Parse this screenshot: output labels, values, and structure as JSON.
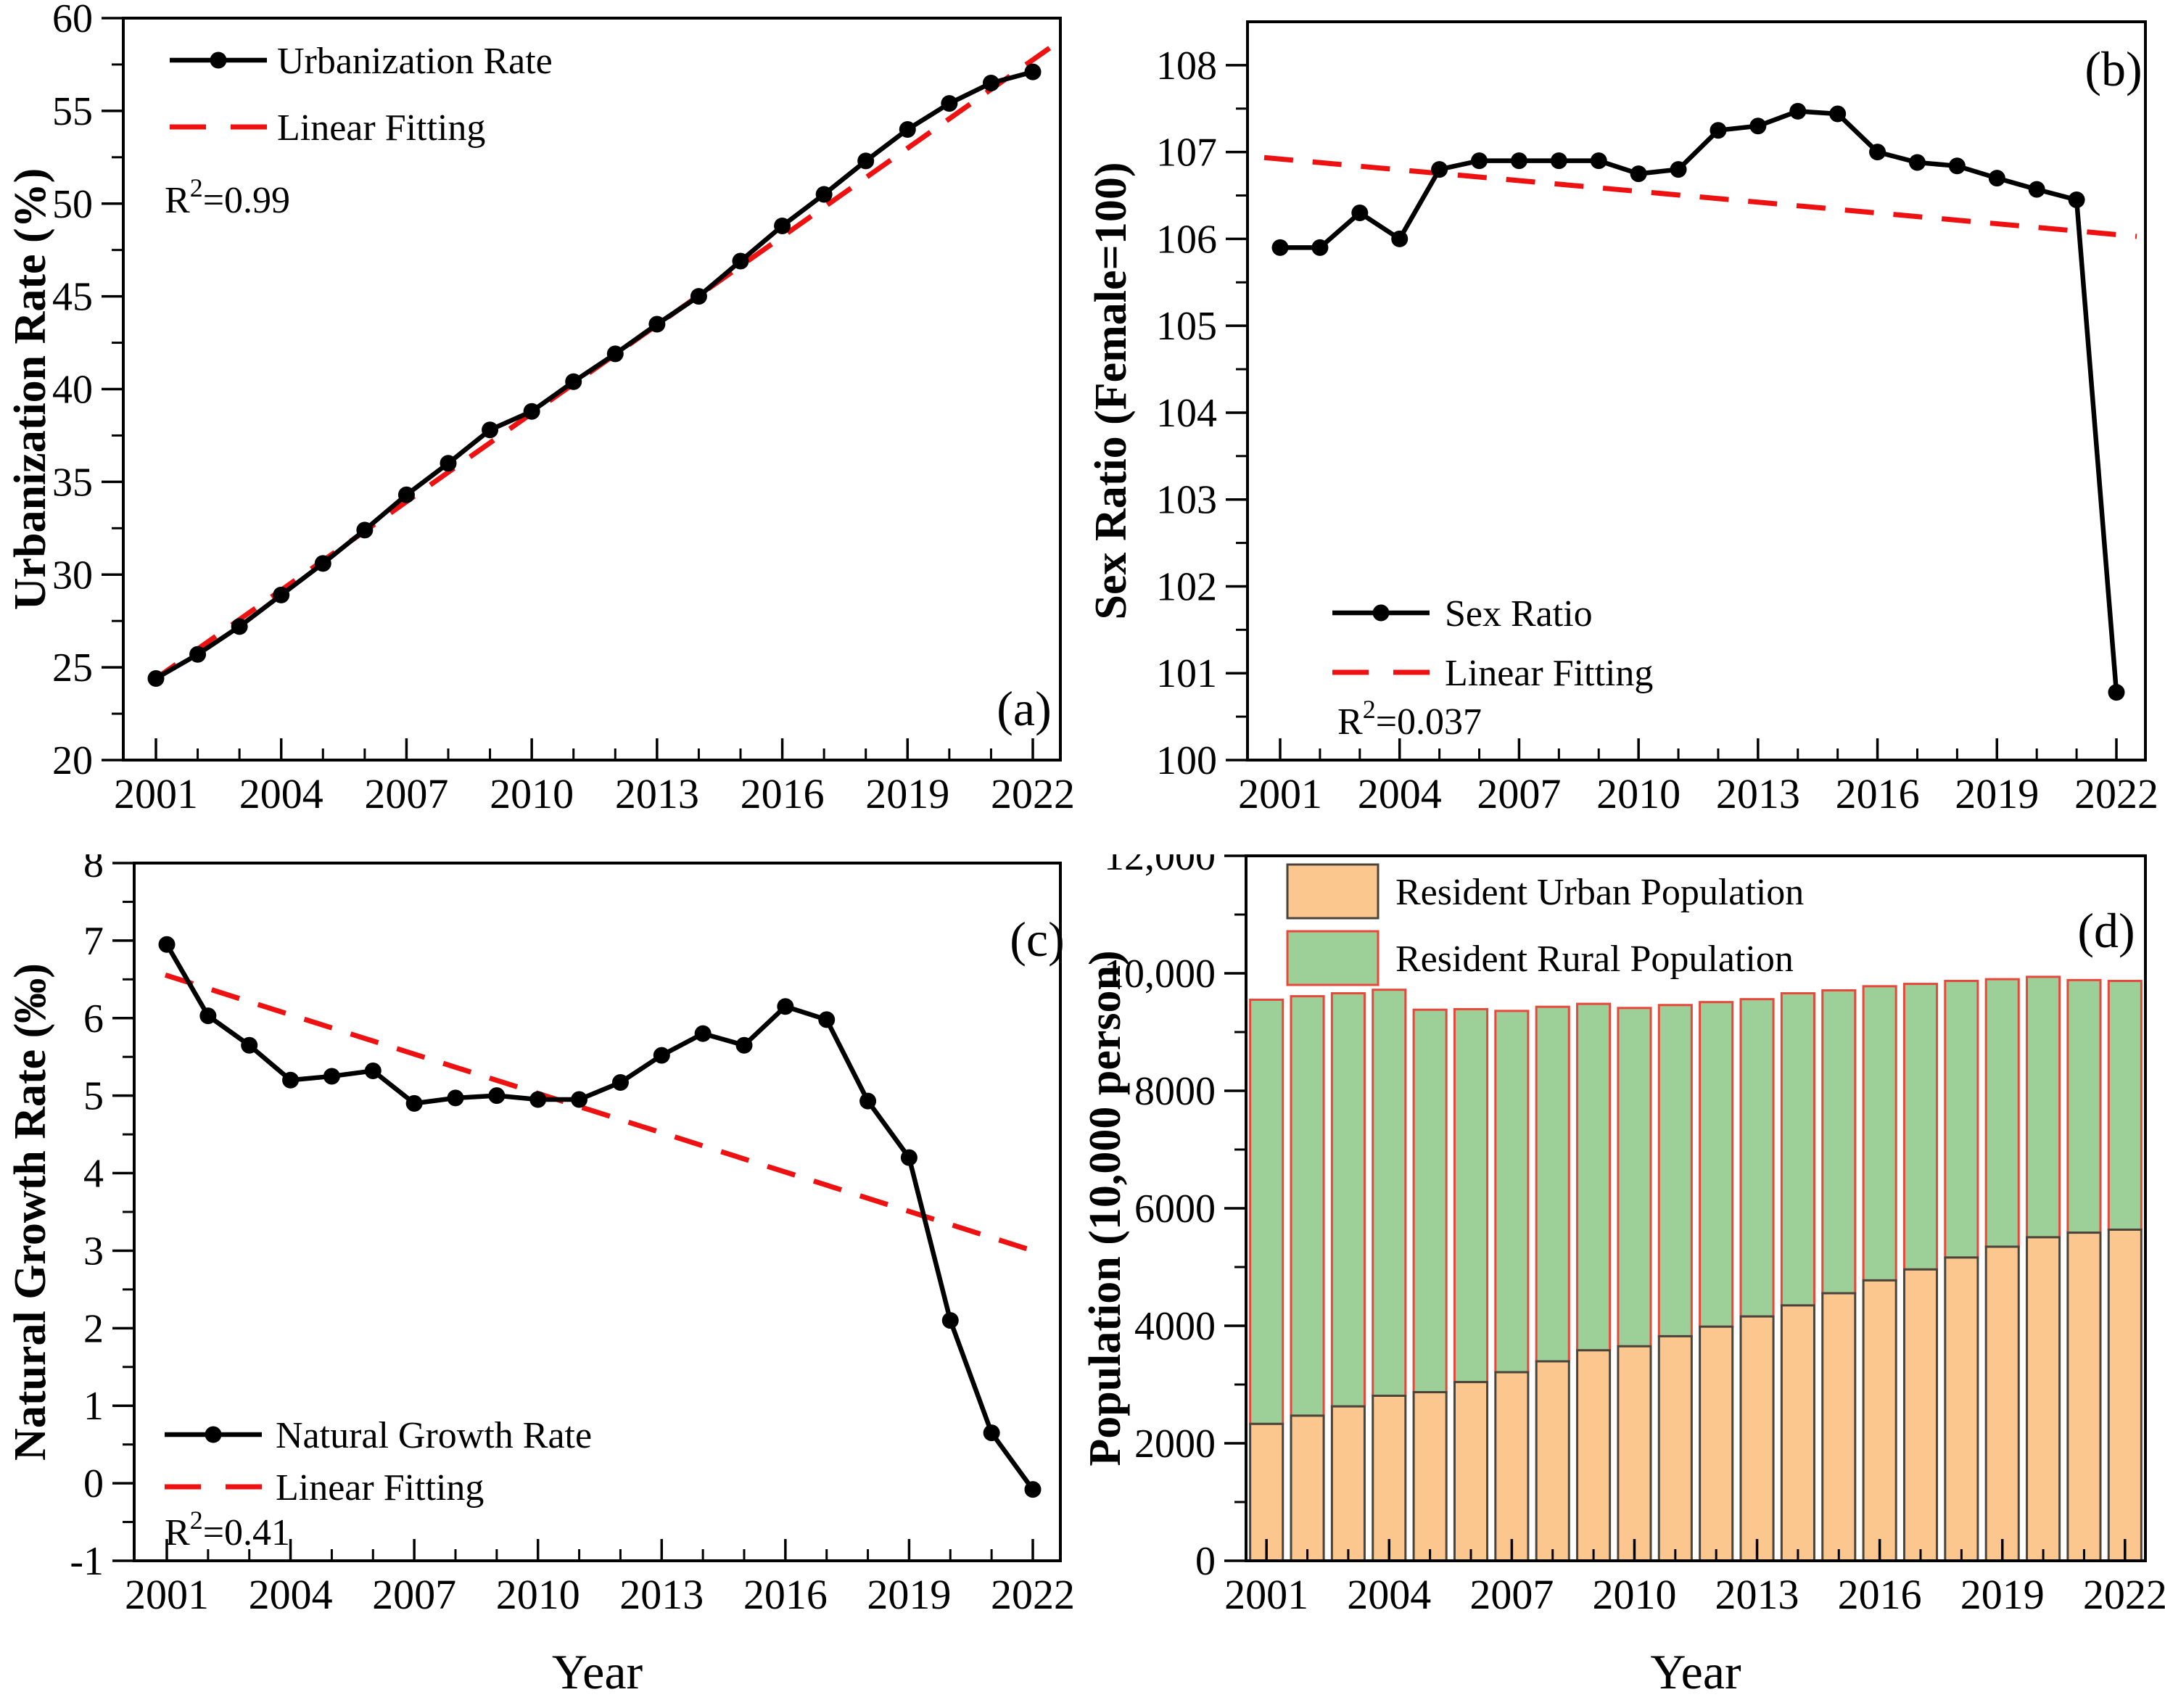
{
  "figure": {
    "background": "#ffffff",
    "x_axis_years": [
      2001,
      2002,
      2003,
      2004,
      2005,
      2006,
      2007,
      2008,
      2009,
      2010,
      2011,
      2012,
      2013,
      2014,
      2015,
      2016,
      2017,
      2018,
      2019,
      2020,
      2021,
      2022
    ],
    "x_major_years": [
      2001,
      2004,
      2007,
      2010,
      2013,
      2016,
      2019,
      2022
    ],
    "x_major_labels": [
      "2001",
      "2004",
      "2007",
      "2010",
      "2013",
      "2016",
      "2019",
      "2022"
    ]
  },
  "colors": {
    "line_black": "#000000",
    "fit_red": "#ee1111",
    "urban_fill": "#fbc78f",
    "urban_edge": "#4a443a",
    "rural_fill": "#9cd098",
    "rural_edge": "#e8473b",
    "axis": "#000000"
  },
  "chart_data": [
    {
      "id": "a",
      "type": "line",
      "panel_label": "(a)",
      "title": "",
      "xlabel": "",
      "ylabel": "Urbanization Rate (%)",
      "ylim": [
        20,
        60
      ],
      "yticks": {
        "values": [
          20,
          25,
          30,
          35,
          40,
          45,
          50,
          55,
          60
        ],
        "labels": [
          "20",
          "25",
          "30",
          "35",
          "40",
          "45",
          "50",
          "55",
          "60"
        ]
      },
      "yminor_step": 2.5,
      "grid": false,
      "legend_position": "top-left",
      "series": [
        {
          "name": "Urbanization Rate",
          "color": "#000000",
          "values": [
            24.4,
            25.7,
            27.2,
            28.9,
            30.6,
            32.4,
            34.3,
            36.0,
            37.8,
            38.8,
            40.4,
            41.9,
            43.5,
            45.0,
            46.9,
            48.8,
            50.5,
            52.3,
            54.0,
            55.4,
            56.5,
            57.1
          ]
        }
      ],
      "fit": {
        "name": "Linear Fitting",
        "color": "#ee1111",
        "start_y": 24.4,
        "end_y": 57.75
      },
      "r2_label": {
        "base": "R",
        "sup": "2",
        "rest": "=0.99"
      },
      "legend_items": [
        {
          "label": "Urbanization Rate",
          "swatch": "line-marker"
        },
        {
          "label": "Linear Fitting",
          "swatch": "red-dash"
        }
      ]
    },
    {
      "id": "b",
      "type": "line",
      "panel_label": "(b)",
      "title": "",
      "xlabel": "",
      "ylabel": "Sex Ratio (Female=100)",
      "ylim": [
        100,
        108.5
      ],
      "yticks": {
        "values": [
          100,
          101,
          102,
          103,
          104,
          105,
          106,
          107,
          108
        ],
        "labels": [
          "100",
          "101",
          "102",
          "103",
          "104",
          "105",
          "106",
          "107",
          "108"
        ]
      },
      "yminor_step": 0.5,
      "grid": false,
      "legend_position": "bottom-left",
      "series": [
        {
          "name": "Sex Ratio",
          "color": "#000000",
          "values": [
            105.9,
            105.9,
            106.3,
            106.0,
            106.8,
            106.9,
            106.9,
            106.9,
            106.9,
            106.75,
            106.8,
            107.25,
            107.3,
            107.47,
            107.44,
            107.0,
            106.88,
            106.84,
            106.7,
            106.57,
            106.45,
            100.78
          ]
        }
      ],
      "fit": {
        "name": "Linear Fitting",
        "color": "#ee1111",
        "start_y": 106.92,
        "end_y": 106.05
      },
      "r2_label": {
        "base": "R",
        "sup": "2",
        "rest": "=0.037"
      },
      "legend_items": [
        {
          "label": "Sex Ratio",
          "swatch": "line-marker"
        },
        {
          "label": "Linear Fitting",
          "swatch": "red-dash"
        }
      ]
    },
    {
      "id": "c",
      "type": "line",
      "panel_label": "(c)",
      "title": "",
      "xlabel": "Year",
      "ylabel": "Natural Growth Rate (‰)",
      "ylim": [
        -1,
        8
      ],
      "yticks": {
        "values": [
          -1,
          0,
          1,
          2,
          3,
          4,
          5,
          6,
          7,
          8
        ],
        "labels": [
          "-1",
          "0",
          "1",
          "2",
          "3",
          "4",
          "5",
          "6",
          "7",
          "8"
        ]
      },
      "yminor_step": 0.5,
      "grid": false,
      "legend_position": "bottom-left",
      "series": [
        {
          "name": "Natural Growth Rate",
          "color": "#000000",
          "values": [
            6.95,
            6.03,
            5.65,
            5.2,
            5.25,
            5.32,
            4.9,
            4.97,
            5.0,
            4.95,
            4.95,
            5.17,
            5.52,
            5.8,
            5.65,
            6.15,
            5.98,
            4.93,
            4.2,
            2.1,
            0.65,
            -0.08
          ]
        }
      ],
      "fit": {
        "name": "Linear Fitting",
        "color": "#ee1111",
        "start_y": 6.55,
        "end_y": 3.0
      },
      "r2_label": {
        "base": "R",
        "sup": "2",
        "rest": "=0.41"
      },
      "legend_items": [
        {
          "label": "Natural Growth Rate",
          "swatch": "line-marker"
        },
        {
          "label": "Linear Fitting",
          "swatch": "red-dash"
        }
      ]
    },
    {
      "id": "d",
      "type": "stacked_bar",
      "panel_label": "(d)",
      "title": "",
      "xlabel": "Year",
      "ylabel": "Population (10,000 person)",
      "ylim": [
        0,
        12000
      ],
      "yticks": {
        "values": [
          0,
          2000,
          4000,
          6000,
          8000,
          10000,
          12000
        ],
        "labels": [
          "0",
          "2000",
          "4000",
          "6000",
          "8000",
          "10,000",
          "12,000"
        ]
      },
      "yminor_step": 1000,
      "grid": false,
      "legend_position": "top-left",
      "series": [
        {
          "name": "Resident Urban Population",
          "fill": "#fbc78f",
          "edge": "#4a443a",
          "values": [
            2330,
            2470,
            2628,
            2809,
            2870,
            3042,
            3210,
            3395,
            3583,
            3651,
            3822,
            3985,
            4159,
            4347,
            4554,
            4773,
            4959,
            5162,
            5346,
            5507,
            5585,
            5636
          ]
        },
        {
          "name": "Resident Rural Population",
          "fill": "#9cd098",
          "edge": "#e8473b",
          "values": [
            7220,
            7140,
            7032,
            6911,
            6510,
            6348,
            6150,
            6035,
            5897,
            5759,
            5638,
            5525,
            5401,
            5313,
            5156,
            5007,
            4861,
            4708,
            4554,
            4433,
            4300,
            4234
          ]
        }
      ],
      "legend_items": [
        {
          "label": "Resident Urban Population",
          "swatch": "rect-urban"
        },
        {
          "label": "Resident Rural Population",
          "swatch": "rect-rural"
        }
      ]
    }
  ]
}
